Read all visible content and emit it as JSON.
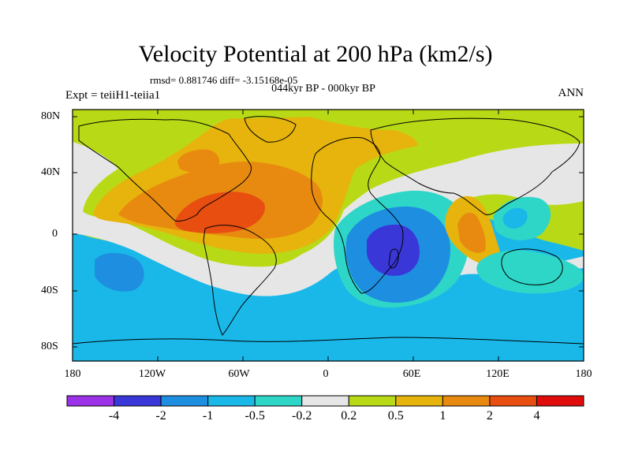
{
  "title": "Velocity Potential at 200 hPa (km2/s)",
  "stats": "rmsd= 0.881746 diff= -3.15168e-05",
  "period": "044kyr BP - 000kyr BP",
  "experiment": "Expt = teiiH1-teiia1",
  "season": "ANN",
  "lat_labels": [
    "80N",
    "40N",
    "0",
    "40S",
    "80S"
  ],
  "lon_labels": [
    "180",
    "120W",
    "60W",
    "0",
    "60E",
    "120E",
    "180"
  ],
  "colorbar": {
    "labels": [
      "-4",
      "-2",
      "-1",
      "-0.5",
      "-0.2",
      "0.2",
      "0.5",
      "1",
      "2",
      "4"
    ],
    "colors": [
      "#9b32e8",
      "#3a37d8",
      "#1e8fe0",
      "#1ab8e8",
      "#2ed6c8",
      "#e6e6e6",
      "#b8da16",
      "#e6b40c",
      "#e88a10",
      "#e84e10",
      "#e00c0c"
    ]
  },
  "map": {
    "lat_range": [
      -90,
      90
    ],
    "lon_range": [
      -180,
      180
    ],
    "background_color": "#b8da16",
    "land_outline_color": "#000000"
  }
}
